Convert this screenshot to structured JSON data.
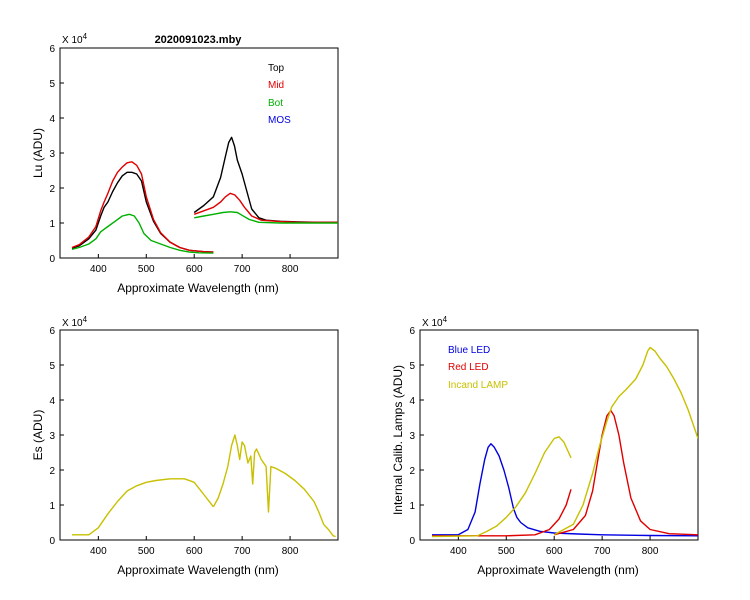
{
  "figure": {
    "title": "2020091023.mby"
  },
  "panels": {
    "lu": {
      "ylabel": "Lu (ADU)",
      "xlabel": "Approximate Wavelength (nm)",
      "exponent": "X 10",
      "exponent_power": "4",
      "legend": [
        {
          "label": "Top",
          "color": "#000000"
        },
        {
          "label": "Mid",
          "color": "#e00000"
        },
        {
          "label": "Bot",
          "color": "#00b000"
        },
        {
          "label": "MOS",
          "color": "#0000e0"
        }
      ]
    },
    "es": {
      "ylabel": "Es  (ADU)",
      "xlabel": "Approximate Wavelength (nm)",
      "exponent": "X 10",
      "exponent_power": "4"
    },
    "lamps": {
      "ylabel": "Internal Calib. Lamps  (ADU)",
      "xlabel": "Approximate Wavelength (nm)",
      "exponent": "X 10",
      "exponent_power": "4",
      "legend": [
        {
          "label": "Blue LED",
          "color": "#0000e0"
        },
        {
          "label": "Red LED",
          "color": "#e00000"
        },
        {
          "label": "Incand LAMP",
          "color": "#c8c000"
        }
      ]
    }
  },
  "chart_data": [
    {
      "type": "line",
      "id": "lu",
      "title": "2020091023.mby",
      "xlabel": "Approximate Wavelength (nm)",
      "ylabel": "Lu (ADU)",
      "xlim": [
        320,
        900
      ],
      "ylim": [
        0,
        6
      ],
      "y_multiplier": "X 10^4",
      "xticks": [
        400,
        500,
        600,
        700,
        800
      ],
      "yticks": [
        0,
        1,
        2,
        3,
        4,
        5,
        6
      ],
      "series": [
        {
          "name": "Top",
          "color": "#000000",
          "segments": [
            {
              "x": [
                345,
                360,
                380,
                395,
                405,
                412,
                420,
                430,
                440,
                450,
                460,
                470,
                480,
                490,
                500,
                515,
                530,
                550,
                570,
                590,
                620,
                640
              ],
              "y": [
                0.28,
                0.35,
                0.55,
                0.8,
                1.2,
                1.45,
                1.6,
                1.9,
                2.15,
                2.35,
                2.45,
                2.45,
                2.4,
                2.2,
                1.6,
                1.05,
                0.7,
                0.45,
                0.3,
                0.22,
                0.18,
                0.17
              ]
            },
            {
              "x": [
                600,
                620,
                640,
                655,
                665,
                672,
                678,
                684,
                690,
                700,
                710,
                720,
                735,
                750,
                780,
                820,
                860,
                900
              ],
              "y": [
                1.3,
                1.5,
                1.75,
                2.3,
                2.9,
                3.3,
                3.45,
                3.2,
                2.8,
                2.4,
                1.9,
                1.4,
                1.15,
                1.08,
                1.05,
                1.03,
                1.02,
                1.02
              ]
            }
          ]
        },
        {
          "name": "Mid",
          "color": "#e00000",
          "segments": [
            {
              "x": [
                345,
                360,
                380,
                395,
                405,
                412,
                420,
                430,
                440,
                450,
                460,
                470,
                480,
                490,
                500,
                515,
                530,
                550,
                570,
                590,
                620,
                640
              ],
              "y": [
                0.3,
                0.38,
                0.6,
                0.9,
                1.35,
                1.6,
                1.85,
                2.2,
                2.45,
                2.6,
                2.72,
                2.75,
                2.65,
                2.4,
                1.75,
                1.1,
                0.72,
                0.45,
                0.3,
                0.22,
                0.18,
                0.17
              ]
            },
            {
              "x": [
                600,
                620,
                640,
                655,
                665,
                675,
                685,
                695,
                705,
                720,
                740,
                780,
                820,
                860,
                900
              ],
              "y": [
                1.25,
                1.35,
                1.45,
                1.6,
                1.75,
                1.85,
                1.8,
                1.65,
                1.45,
                1.2,
                1.08,
                1.04,
                1.02,
                1.02,
                1.02
              ]
            }
          ]
        },
        {
          "name": "Bot",
          "color": "#00b000",
          "segments": [
            {
              "x": [
                345,
                360,
                380,
                395,
                405,
                420,
                435,
                450,
                465,
                475,
                485,
                495,
                510,
                530,
                550,
                570,
                590,
                610,
                640
              ],
              "y": [
                0.25,
                0.3,
                0.4,
                0.55,
                0.75,
                0.9,
                1.05,
                1.2,
                1.25,
                1.2,
                1.0,
                0.7,
                0.5,
                0.4,
                0.3,
                0.22,
                0.17,
                0.15,
                0.14
              ]
            },
            {
              "x": [
                600,
                620,
                640,
                660,
                675,
                690,
                700,
                715,
                735,
                780,
                840,
                900
              ],
              "y": [
                1.15,
                1.2,
                1.25,
                1.3,
                1.32,
                1.3,
                1.22,
                1.1,
                1.02,
                1.0,
                1.0,
                1.0
              ]
            }
          ]
        },
        {
          "name": "MOS",
          "color": "#0000e0",
          "segments": []
        }
      ]
    },
    {
      "type": "line",
      "id": "es",
      "title": "",
      "xlabel": "Approximate Wavelength (nm)",
      "ylabel": "Es  (ADU)",
      "xlim": [
        320,
        900
      ],
      "ylim": [
        0,
        6
      ],
      "y_multiplier": "X 10^4",
      "xticks": [
        400,
        500,
        600,
        700,
        800
      ],
      "yticks": [
        0,
        1,
        2,
        3,
        4,
        5,
        6
      ],
      "series": [
        {
          "name": "Es",
          "color": "#c8c000",
          "segments": [
            {
              "x": [
                345,
                380,
                400,
                420,
                440,
                460,
                480,
                500,
                520,
                550,
                580,
                600,
                620,
                640
              ],
              "y": [
                0.15,
                0.15,
                0.35,
                0.75,
                1.1,
                1.4,
                1.55,
                1.65,
                1.7,
                1.75,
                1.75,
                1.65,
                1.3,
                0.95
              ]
            },
            {
              "x": [
                640,
                650,
                660,
                670,
                678,
                685,
                690,
                695,
                700,
                705,
                712,
                718,
                722,
                726,
                730,
                740,
                750,
                755,
                760,
                770,
                790,
                810,
                830,
                850,
                860,
                870,
                880,
                890,
                895
              ],
              "y": [
                0.95,
                1.2,
                1.6,
                2.1,
                2.7,
                3.0,
                2.7,
                2.3,
                2.8,
                2.7,
                2.2,
                2.4,
                1.6,
                2.5,
                2.6,
                2.3,
                2.1,
                0.8,
                2.1,
                2.05,
                1.9,
                1.7,
                1.45,
                1.1,
                0.8,
                0.45,
                0.3,
                0.12,
                0.1
              ]
            }
          ]
        }
      ]
    },
    {
      "type": "line",
      "id": "lamps",
      "title": "",
      "xlabel": "Approximate Wavelength (nm)",
      "ylabel": "Internal Calib. Lamps  (ADU)",
      "xlim": [
        320,
        900
      ],
      "ylim": [
        0,
        6
      ],
      "y_multiplier": "X 10^4",
      "xticks": [
        400,
        500,
        600,
        700,
        800
      ],
      "yticks": [
        0,
        1,
        2,
        3,
        4,
        5,
        6
      ],
      "series": [
        {
          "name": "Blue LED",
          "color": "#0000e0",
          "segments": [
            {
              "x": [
                345,
                400,
                420,
                435,
                445,
                455,
                462,
                468,
                475,
                485,
                495,
                505,
                515,
                522,
                530,
                545,
                570,
                600,
                650,
                700,
                800,
                900
              ],
              "y": [
                0.15,
                0.15,
                0.3,
                0.8,
                1.6,
                2.3,
                2.65,
                2.75,
                2.65,
                2.4,
                2.0,
                1.5,
                0.9,
                0.65,
                0.5,
                0.35,
                0.25,
                0.2,
                0.17,
                0.15,
                0.13,
                0.12
              ]
            }
          ]
        },
        {
          "name": "Red LED",
          "color": "#e00000",
          "segments": [
            {
              "x": [
                345,
                500,
                560,
                590,
                610,
                625,
                635
              ],
              "y": [
                0.12,
                0.12,
                0.15,
                0.3,
                0.6,
                1.0,
                1.45
              ]
            },
            {
              "x": [
                600,
                640,
                665,
                680,
                690,
                700,
                710,
                718,
                725,
                735,
                745,
                760,
                780,
                800,
                840,
                900
              ],
              "y": [
                0.15,
                0.3,
                0.7,
                1.4,
                2.2,
                3.0,
                3.55,
                3.7,
                3.55,
                3.0,
                2.2,
                1.2,
                0.55,
                0.3,
                0.18,
                0.15
              ]
            }
          ]
        },
        {
          "name": "Incand LAMP",
          "color": "#c8c000",
          "segments": [
            {
              "x": [
                345,
                440,
                460,
                480,
                500,
                520,
                540,
                560,
                580,
                600,
                610,
                620,
                630,
                635
              ],
              "y": [
                0.1,
                0.12,
                0.25,
                0.4,
                0.65,
                0.95,
                1.35,
                1.9,
                2.5,
                2.9,
                2.95,
                2.8,
                2.5,
                2.35
              ]
            },
            {
              "x": [
                600,
                640,
                660,
                680,
                695,
                710,
                720,
                735,
                750,
                770,
                785,
                795,
                800,
                810,
                820,
                835,
                850,
                865,
                880,
                895,
                900
              ],
              "y": [
                0.15,
                0.45,
                1.0,
                1.9,
                2.7,
                3.4,
                3.8,
                4.1,
                4.3,
                4.6,
                5.0,
                5.4,
                5.5,
                5.4,
                5.2,
                4.95,
                4.6,
                4.2,
                3.7,
                3.1,
                2.9
              ]
            }
          ]
        }
      ]
    }
  ]
}
